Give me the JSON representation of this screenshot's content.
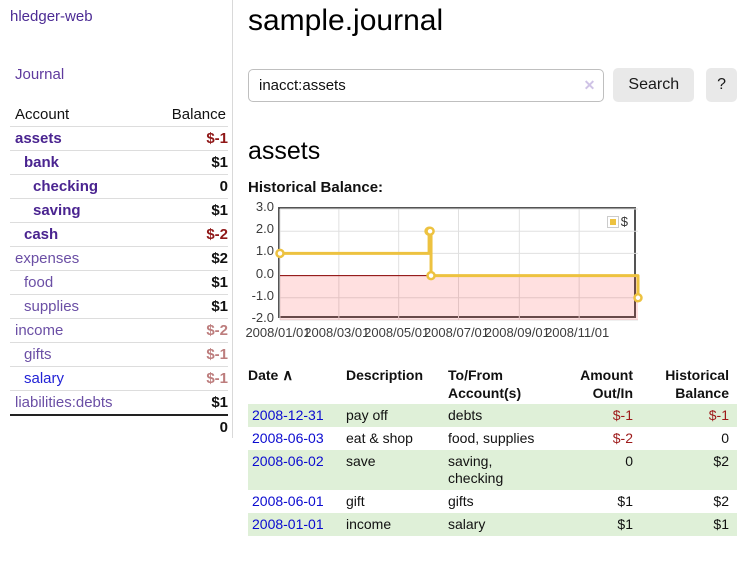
{
  "app": {
    "title": "hledger-web"
  },
  "sidebar": {
    "journal_label": "Journal",
    "headers": {
      "account": "Account",
      "balance": "Balance"
    },
    "accounts": [
      {
        "account": "assets",
        "balance": "$-1",
        "level": 1,
        "emph": true,
        "balance_class": "neg-strong"
      },
      {
        "account": "bank",
        "balance": "$1",
        "level": 2,
        "emph": true,
        "balance_class": ""
      },
      {
        "account": "checking",
        "balance": "0",
        "level": 3,
        "emph": true,
        "balance_class": ""
      },
      {
        "account": "saving",
        "balance": "$1",
        "level": 3,
        "emph": true,
        "balance_class": ""
      },
      {
        "account": "cash",
        "balance": "$-2",
        "level": 2,
        "emph": true,
        "balance_class": "neg-strong"
      },
      {
        "account": "expenses",
        "balance": "$2",
        "level": 1,
        "emph": false,
        "balance_class": ""
      },
      {
        "account": "food",
        "balance": "$1",
        "level": 2,
        "emph": false,
        "balance_class": ""
      },
      {
        "account": "supplies",
        "balance": "$1",
        "level": 2,
        "emph": false,
        "balance_class": ""
      },
      {
        "account": "income",
        "balance": "$-2",
        "level": 1,
        "emph": false,
        "balance_class": "neg-soft"
      },
      {
        "account": "gifts",
        "balance": "$-1",
        "level": 2,
        "emph": false,
        "balance_class": "neg-soft"
      },
      {
        "account": "salary",
        "balance": "$-1",
        "level": 2,
        "emph": false,
        "balance_class": "neg-soft",
        "link_style": "blue"
      },
      {
        "account": "liabilities:debts",
        "balance": "$1",
        "level": 1,
        "emph": false,
        "balance_class": ""
      }
    ],
    "total": "0"
  },
  "main": {
    "title": "sample.journal",
    "search": {
      "value": "inacct:assets",
      "clear_icon": "✕",
      "search_label": "Search",
      "help_label": "?"
    },
    "account_heading": "assets",
    "chart_label": "Historical Balance:"
  },
  "chart_data": {
    "type": "line",
    "steps": true,
    "title": "Historical Balance",
    "legend": "$",
    "legend_position": "top-right",
    "grid": true,
    "xrange": [
      "2008-01-01",
      "2008-12-31"
    ],
    "ylim": [
      -2,
      3
    ],
    "y_ticks": [
      {
        "value": 3,
        "label": "3.0"
      },
      {
        "value": 2,
        "label": "2.0"
      },
      {
        "value": 1,
        "label": "1.0"
      },
      {
        "value": 0,
        "label": "0.0"
      },
      {
        "value": -1,
        "label": "-1.0"
      },
      {
        "value": -2,
        "label": "-2.0"
      }
    ],
    "x_ticks": [
      {
        "date": "2008-01-01",
        "label": "2008/01/01"
      },
      {
        "date": "2008-03-01",
        "label": "2008/03/01"
      },
      {
        "date": "2008-05-01",
        "label": "2008/05/01"
      },
      {
        "date": "2008-07-01",
        "label": "2008/07/01"
      },
      {
        "date": "2008-09-01",
        "label": "2008/09/01"
      },
      {
        "date": "2008-11-01",
        "label": "2008/11/01"
      }
    ],
    "series": [
      {
        "name": "$",
        "color": "#edc240",
        "points": [
          [
            "2008-01-01",
            1
          ],
          [
            "2008-06-01",
            2
          ],
          [
            "2008-06-02",
            2
          ],
          [
            "2008-06-03",
            0
          ],
          [
            "2008-12-31",
            -1
          ]
        ]
      }
    ],
    "negative_region_fill": "rgba(255,0,0,0.12)",
    "zero_line_color": "#8b0000",
    "gridline_color": "#e0e0e0"
  },
  "register": {
    "headers": {
      "date": "Date",
      "sort_icon": "∧",
      "description": "Description",
      "tofrom_line1": "To/From",
      "tofrom_line2": "Account(s)",
      "amount_line1": "Amount",
      "amount_line2": "Out/In",
      "balance_line1": "Historical",
      "balance_line2": "Balance"
    },
    "rows": [
      {
        "date": "2008-12-31",
        "description": "pay off",
        "accounts": "debts",
        "amount": "$-1",
        "amount_negative": true,
        "balance": "$-1",
        "balance_negative": true
      },
      {
        "date": "2008-06-03",
        "description": "eat & shop",
        "accounts": "food, supplies",
        "amount": "$-2",
        "amount_negative": true,
        "balance": "0",
        "balance_negative": false
      },
      {
        "date": "2008-06-02",
        "description": "save",
        "accounts": "saving, checking",
        "amount": "0",
        "amount_negative": false,
        "balance": "$2",
        "balance_negative": false
      },
      {
        "date": "2008-06-01",
        "description": "gift",
        "accounts": "gifts",
        "amount": "$1",
        "amount_negative": false,
        "balance": "$2",
        "balance_negative": false
      },
      {
        "date": "2008-01-01",
        "description": "income",
        "accounts": "salary",
        "amount": "$1",
        "amount_negative": false,
        "balance": "$1",
        "balance_negative": false
      }
    ]
  }
}
